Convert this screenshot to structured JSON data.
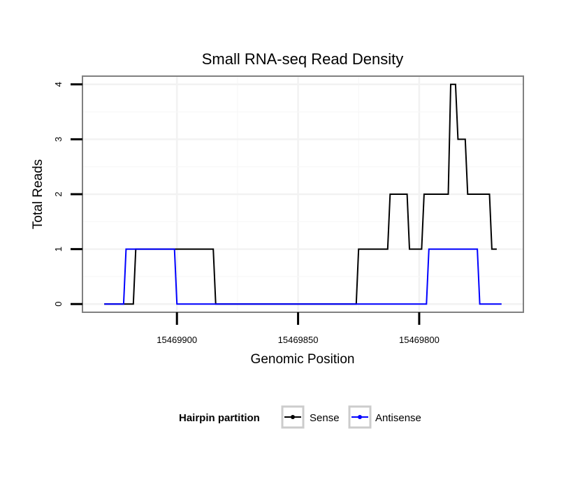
{
  "chart_data": {
    "type": "line",
    "title": "Small RNA-seq Read Density",
    "xlabel": "Genomic Position",
    "ylabel": "Total Reads",
    "x_reversed": true,
    "xlim": [
      15469939,
      15469757
    ],
    "ylim": [
      -0.15,
      4.15
    ],
    "x_ticks": [
      15469900,
      15469850,
      15469800
    ],
    "x_tick_labels": [
      "15469900",
      "15469850",
      "15469800"
    ],
    "y_ticks": [
      0,
      1,
      2,
      3,
      4
    ],
    "y_tick_labels": [
      "0",
      "1",
      "2",
      "3",
      "4"
    ],
    "grid": true,
    "legend": {
      "title": "Hairpin partition",
      "position": "bottom"
    },
    "series": [
      {
        "name": "Sense",
        "color": "#000000",
        "points": [
          [
            15469930,
            0
          ],
          [
            15469918,
            0
          ],
          [
            15469917,
            1
          ],
          [
            15469902,
            1
          ],
          [
            15469901,
            1
          ],
          [
            15469885,
            1
          ],
          [
            15469884,
            0
          ],
          [
            15469826,
            0
          ],
          [
            15469825,
            1
          ],
          [
            15469813,
            1
          ],
          [
            15469812,
            2
          ],
          [
            15469805,
            2
          ],
          [
            15469804,
            1
          ],
          [
            15469799,
            1
          ],
          [
            15469798,
            2
          ],
          [
            15469788,
            2
          ],
          [
            15469787,
            4
          ],
          [
            15469785,
            4
          ],
          [
            15469784,
            3
          ],
          [
            15469781,
            3
          ],
          [
            15469780,
            2
          ],
          [
            15469771,
            2
          ],
          [
            15469770,
            1
          ],
          [
            15469768,
            1
          ]
        ]
      },
      {
        "name": "Antisense",
        "color": "#0000ff",
        "points": [
          [
            15469930,
            0
          ],
          [
            15469922,
            0
          ],
          [
            15469921,
            1
          ],
          [
            15469901,
            1
          ],
          [
            15469900,
            0
          ],
          [
            15469797,
            0
          ],
          [
            15469796,
            1
          ],
          [
            15469776,
            1
          ],
          [
            15469775,
            0
          ],
          [
            15469766,
            0
          ]
        ]
      }
    ]
  }
}
